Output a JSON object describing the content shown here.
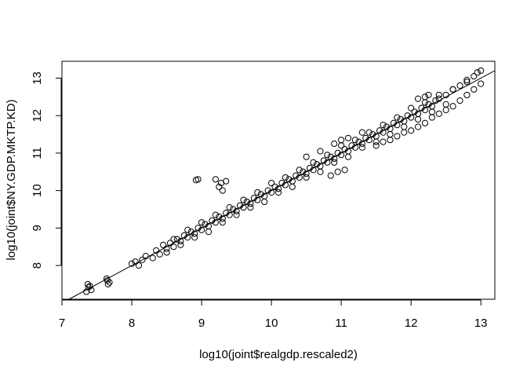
{
  "chart_data": {
    "type": "scatter",
    "title": "",
    "xlabel": "log10(joint$realgdp.rescaled2)",
    "ylabel": "log10(joint$NY.GDP.MKTP.KD)",
    "xlim": [
      7,
      13.2
    ],
    "ylim": [
      7.1,
      13.45
    ],
    "xticks": [
      "7",
      "8",
      "9",
      "10",
      "11",
      "12",
      "13"
    ],
    "yticks": [
      "8",
      "9",
      "10",
      "11",
      "12",
      "13"
    ],
    "marker": "open-circle",
    "grid": false,
    "legend": "none",
    "reference_line": {
      "intercept": 0,
      "slope": 1
    },
    "series": [
      {
        "x": [
          7.35,
          7.37,
          7.4,
          7.42,
          7.38,
          7.65,
          7.66,
          7.64,
          7.68,
          8.0,
          8.05,
          8.1,
          8.2,
          8.15,
          8.3,
          8.35,
          8.4,
          8.5,
          8.45,
          8.55,
          8.6,
          8.65,
          8.7,
          8.75,
          8.8,
          8.85,
          8.9,
          8.95,
          9.0,
          9.05,
          9.1,
          9.15,
          9.2,
          9.25,
          9.3,
          9.35,
          9.4,
          9.45,
          9.5,
          9.55,
          9.6,
          9.65,
          9.7,
          9.75,
          9.8,
          9.85,
          9.9,
          9.95,
          10.0,
          10.05,
          10.1,
          10.15,
          10.2,
          10.25,
          10.3,
          10.35,
          10.4,
          10.45,
          10.5,
          10.55,
          10.6,
          10.65,
          10.7,
          10.75,
          10.8,
          10.85,
          10.9,
          10.95,
          11.0,
          11.05,
          11.1,
          11.15,
          11.2,
          11.25,
          11.3,
          11.35,
          11.4,
          11.45,
          11.5,
          11.55,
          11.6,
          11.65,
          11.7,
          11.75,
          11.8,
          11.85,
          11.9,
          11.95,
          12.0,
          12.05,
          12.1,
          12.15,
          12.2,
          12.25,
          12.3,
          12.35,
          12.4,
          12.5,
          12.6,
          12.7,
          12.8,
          12.9,
          12.95,
          13.0,
          8.6,
          8.8,
          9.0,
          9.2,
          9.4,
          9.6,
          9.8,
          10.0,
          10.2,
          10.4,
          10.6,
          10.8,
          11.0,
          11.2,
          11.4,
          11.6,
          11.8,
          12.0,
          12.2,
          12.4,
          12.6,
          12.8,
          8.5,
          8.9,
          9.3,
          9.7,
          10.1,
          10.5,
          10.9,
          11.3,
          11.7,
          12.1,
          12.5,
          8.7,
          9.1,
          9.5,
          9.9,
          10.3,
          10.7,
          11.1,
          11.5,
          11.9,
          12.3,
          9.2,
          9.25,
          9.3,
          9.28,
          9.35,
          8.95,
          8.92,
          10.5,
          10.7,
          10.9,
          11.0,
          11.1,
          11.3,
          10.85,
          10.95,
          11.05,
          12.1,
          12.2,
          12.25,
          11.5,
          11.6,
          11.7,
          11.8,
          11.9,
          12.0,
          12.1,
          12.2,
          12.3,
          12.4,
          12.5,
          12.6,
          12.7,
          12.8,
          12.9,
          13.0
        ],
        "y": [
          7.3,
          7.5,
          7.45,
          7.35,
          7.42,
          7.6,
          7.5,
          7.65,
          7.55,
          8.05,
          8.1,
          8.0,
          8.25,
          8.15,
          8.2,
          8.4,
          8.3,
          8.45,
          8.55,
          8.6,
          8.5,
          8.7,
          8.65,
          8.8,
          8.75,
          8.9,
          8.85,
          9.0,
          8.95,
          9.1,
          9.05,
          9.2,
          9.15,
          9.3,
          9.25,
          9.4,
          9.35,
          9.5,
          9.45,
          9.6,
          9.55,
          9.7,
          9.65,
          9.8,
          9.75,
          9.9,
          9.85,
          10.0,
          9.95,
          10.1,
          10.05,
          10.2,
          10.15,
          10.3,
          10.25,
          10.4,
          10.35,
          10.5,
          10.45,
          10.6,
          10.55,
          10.7,
          10.65,
          10.8,
          10.75,
          10.9,
          10.85,
          11.0,
          10.95,
          11.1,
          11.05,
          11.2,
          11.15,
          11.3,
          11.25,
          11.4,
          11.35,
          11.5,
          11.45,
          11.6,
          11.55,
          11.7,
          11.65,
          11.8,
          11.75,
          11.9,
          11.85,
          12.0,
          11.95,
          12.1,
          12.05,
          12.2,
          12.15,
          12.3,
          12.25,
          12.4,
          12.45,
          12.55,
          12.7,
          12.8,
          12.95,
          13.05,
          13.15,
          13.2,
          8.7,
          8.95,
          9.15,
          9.35,
          9.55,
          9.75,
          9.95,
          10.2,
          10.35,
          10.55,
          10.75,
          10.95,
          11.2,
          11.35,
          11.55,
          11.75,
          11.95,
          12.2,
          12.35,
          12.55,
          12.7,
          12.9,
          8.35,
          8.75,
          9.15,
          9.55,
          9.95,
          10.35,
          10.75,
          11.15,
          11.5,
          11.9,
          12.3,
          8.55,
          8.9,
          9.35,
          9.7,
          10.1,
          10.5,
          10.9,
          11.3,
          11.7,
          12.1,
          10.3,
          10.1,
          10.0,
          10.2,
          10.25,
          10.3,
          10.28,
          10.9,
          11.05,
          11.25,
          11.35,
          11.4,
          11.55,
          10.4,
          10.5,
          10.55,
          12.45,
          12.5,
          12.55,
          11.2,
          11.3,
          11.35,
          11.45,
          11.55,
          11.6,
          11.7,
          11.8,
          11.95,
          12.05,
          12.15,
          12.25,
          12.4,
          12.55,
          12.7,
          12.85
        ]
      }
    ]
  }
}
